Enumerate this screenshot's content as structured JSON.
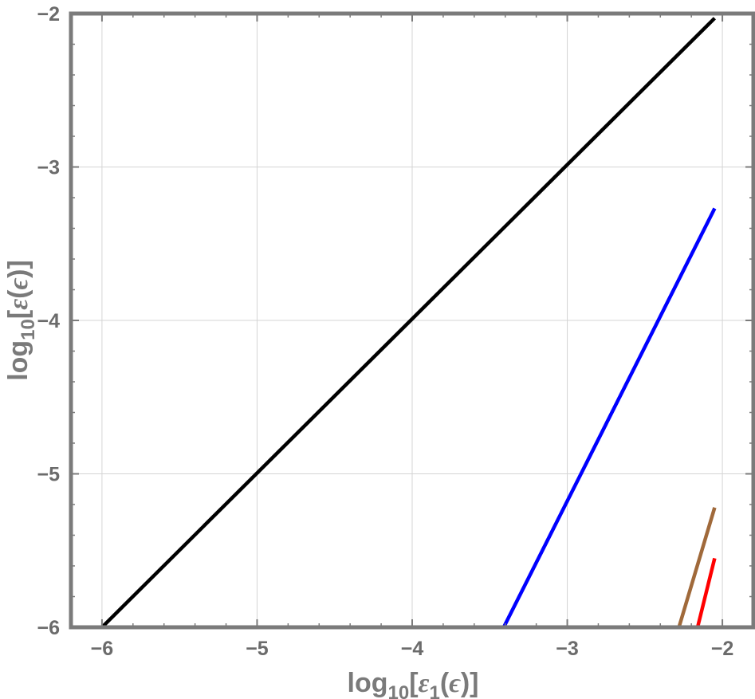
{
  "chart_data": {
    "type": "line",
    "title": "",
    "xlabel": {
      "prefix": "log",
      "base": "10",
      "open": "[",
      "symbol": "ε",
      "symbol_sub": "1",
      "arg_open": "(",
      "arg": "ϵ",
      "arg_close": ")",
      "close": "]"
    },
    "ylabel": {
      "prefix": "log",
      "base": "10",
      "open": "[",
      "symbol": "ε",
      "arg_open": "(",
      "arg": "ϵ",
      "arg_close": ")",
      "close": "]"
    },
    "xlim": [
      -6.2,
      -1.8
    ],
    "ylim": [
      -6,
      -2
    ],
    "x_ticks": [
      -6,
      -5,
      -4,
      -3,
      -2
    ],
    "x_tick_labels": [
      "−6",
      "−5",
      "−4",
      "−3",
      "−2"
    ],
    "y_ticks": [
      -6,
      -5,
      -4,
      -3,
      -2
    ],
    "y_tick_labels": [
      "−6",
      "−5",
      "−4",
      "−3",
      "−2"
    ],
    "grid": true,
    "legend": "none",
    "series": [
      {
        "color": "#000000",
        "x": [
          -6.0,
          -2.05
        ],
        "y": [
          -6.0,
          -2.03
        ]
      },
      {
        "color": "#0000ff",
        "x": [
          -3.41,
          -2.05
        ],
        "y": [
          -6.0,
          -3.27
        ]
      },
      {
        "color": "#a0693a",
        "x": [
          -2.28,
          -2.05
        ],
        "y": [
          -6.0,
          -5.22
        ]
      },
      {
        "color": "#ff0000",
        "x": [
          -2.16,
          -2.05
        ],
        "y": [
          -6.0,
          -5.55
        ]
      }
    ]
  },
  "colors": {
    "frame": "#7b7b7b",
    "grid": "#d4d4d4",
    "tick_label": "#6b6b6b",
    "axis_title": "#7a7a7a"
  }
}
